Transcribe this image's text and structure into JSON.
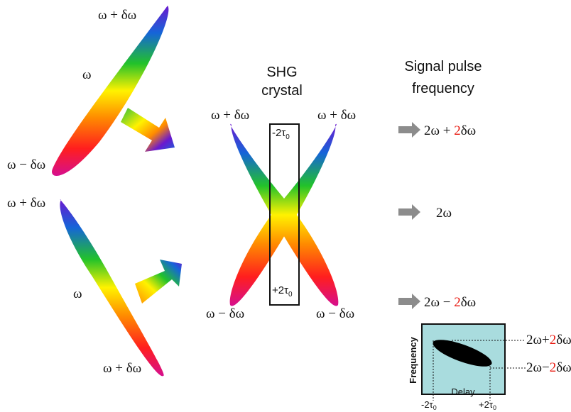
{
  "labels": {
    "omega_plus": "ω + δω",
    "omega": "ω",
    "omega_minus": "ω − δω",
    "omega_plus_bottom": "ω + δω",
    "crystal_upper_left": "ω + δω",
    "crystal_upper_right": "ω + δω",
    "crystal_lower_left": "ω − δω",
    "crystal_lower_right": "ω − δω"
  },
  "crystal": {
    "title_line1": "SHG",
    "title_line2": "crystal",
    "tau_top_prefix": "-2τ",
    "tau_top_sub": "0",
    "tau_bottom_prefix": "+2τ",
    "tau_bottom_sub": "0"
  },
  "signal": {
    "header_line1": "Signal pulse",
    "header_line2": "frequency",
    "high_a": "2ω + ",
    "high_b": "2",
    "high_c": "δω",
    "mid": "2ω",
    "low_a": "2ω − ",
    "low_b": "2",
    "low_c": "δω"
  },
  "inset": {
    "ylabel": "Frequency",
    "xlabel": "Delay",
    "tick_left_prefix": "-2τ",
    "tick_left_sub": "0",
    "tick_right_prefix": "+2τ",
    "tick_right_sub": "0",
    "freq_high_a": "2ω+",
    "freq_high_b": "2",
    "freq_high_c": "δω",
    "freq_low_a": "2ω−",
    "freq_low_b": "2",
    "freq_low_c": "δω",
    "background_color": "#a9dcde"
  },
  "colors": {
    "spectrum": [
      "#d60f8e",
      "#ff1e1e",
      "#ff7f00",
      "#fff200",
      "#22c22a",
      "#1565d8",
      "#6a18d0"
    ],
    "arrow_gray": "#8c8c8c",
    "accent_red": "#e8170e"
  }
}
